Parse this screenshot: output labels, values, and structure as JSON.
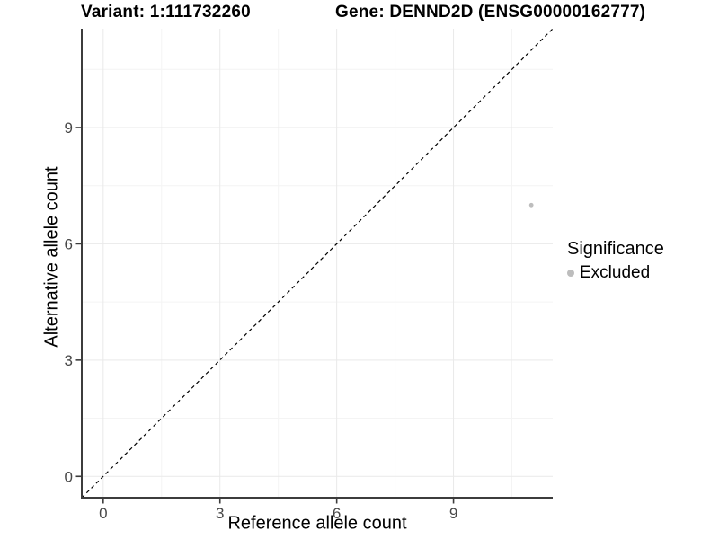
{
  "chart_data": {
    "type": "scatter",
    "titles": {
      "left": "Variant: 1:111732260",
      "right": "Gene: DENND2D (ENSG00000162777)"
    },
    "xlabel": "Reference allele count",
    "ylabel": "Alternative allele count",
    "xlim": [
      -0.55,
      11.55
    ],
    "ylim": [
      -0.55,
      11.55
    ],
    "x_ticks": [
      0,
      3,
      6,
      9
    ],
    "y_ticks": [
      0,
      3,
      6,
      9
    ],
    "x_minor_ticks": [
      1.5,
      4.5,
      7.5,
      10.5
    ],
    "y_minor_ticks": [
      1.5,
      4.5,
      7.5,
      10.5
    ],
    "grid": "major and minor light-gray gridlines on white panel",
    "points": [
      {
        "x": 11,
        "y": 7,
        "significance": "Excluded"
      }
    ],
    "identity_line": {
      "slope": 1,
      "intercept": 0,
      "style": "dashed",
      "color": "#000000"
    },
    "legend": {
      "position": "right",
      "title": "Significance",
      "items": [
        {
          "label": "Excluded",
          "color": "#bdbdbd"
        }
      ]
    }
  },
  "colors": {
    "background": "#ffffff",
    "grid_major": "#e9e9e9",
    "grid_minor": "#f4f4f4",
    "axis_line": "#3c3c3c",
    "tick_mark": "#3c3c3c",
    "tick_label": "#474747",
    "point_excluded": "#bdbdbd"
  }
}
